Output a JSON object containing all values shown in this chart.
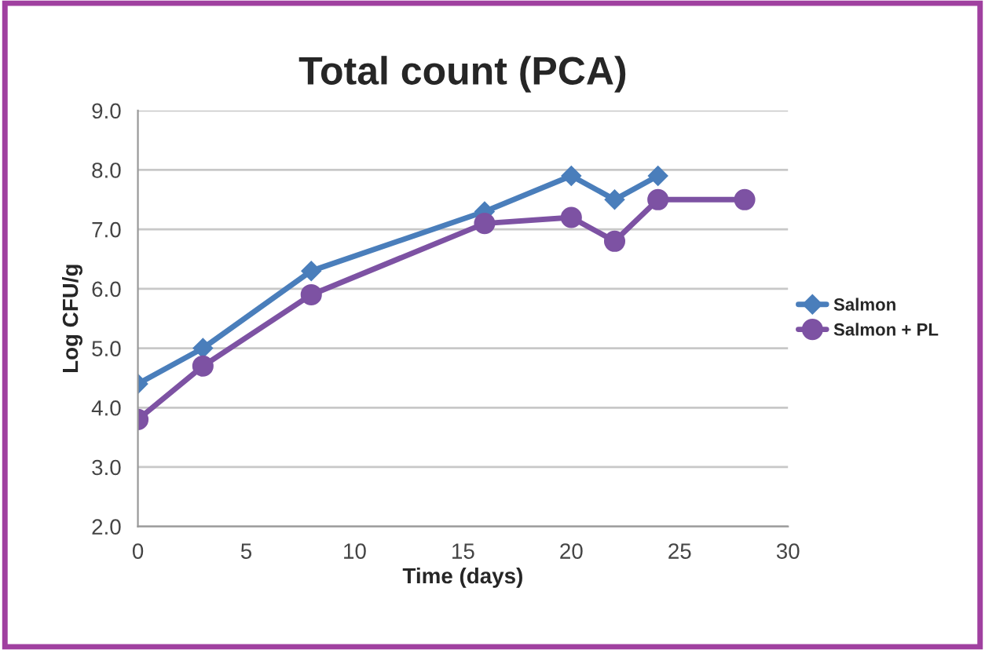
{
  "chart_data": {
    "type": "line",
    "title": "Total count (PCA)",
    "xlabel": "Time (days)",
    "ylabel": "Log CFU/g",
    "series": [
      {
        "name": "Salmon",
        "color": "#4a7ebb",
        "marker": "diamond",
        "x": [
          0,
          3,
          8,
          16,
          20,
          22,
          24
        ],
        "values": [
          4.4,
          5.0,
          6.3,
          7.3,
          7.9,
          7.5,
          7.9
        ]
      },
      {
        "name": "Salmon + PL",
        "color": "#7d52a3",
        "marker": "circle",
        "x": [
          0,
          3,
          8,
          16,
          20,
          22,
          24,
          28
        ],
        "values": [
          3.8,
          4.7,
          5.9,
          7.1,
          7.2,
          6.8,
          7.5,
          7.5
        ]
      }
    ],
    "xlim": [
      0,
      30
    ],
    "xticks": [
      0,
      5,
      10,
      15,
      20,
      25,
      30
    ],
    "ylim": [
      2,
      9
    ],
    "yticks": [
      {
        "value": 2,
        "label": "2.0"
      },
      {
        "value": 3,
        "label": "3.0"
      },
      {
        "value": 4,
        "label": "4.0"
      },
      {
        "value": 5,
        "label": "5.0"
      },
      {
        "value": 6,
        "label": "6.0"
      },
      {
        "value": 7,
        "label": "7.0"
      },
      {
        "value": 8,
        "label": "8.0"
      },
      {
        "value": 9,
        "label": "9.0"
      }
    ],
    "grid": "y",
    "legend": "right",
    "line_style": "solid"
  }
}
